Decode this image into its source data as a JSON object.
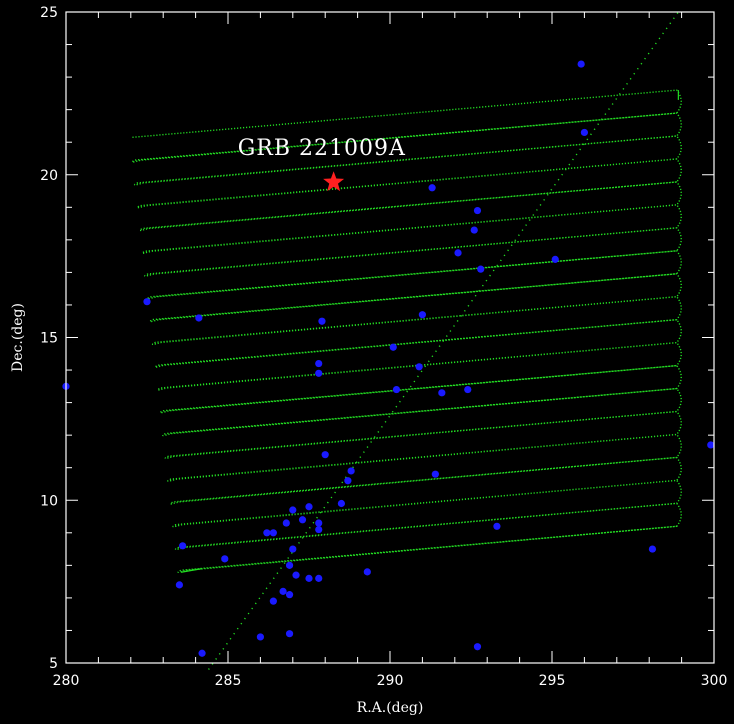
{
  "chart_data": {
    "type": "scatter",
    "xlabel": "R.A.(deg)",
    "ylabel": "Dec.(deg)",
    "xlim": [
      280,
      300
    ],
    "ylim": [
      5,
      25
    ],
    "x_ticks": [
      280,
      285,
      290,
      295,
      300
    ],
    "y_ticks": [
      5,
      10,
      15,
      20,
      25
    ],
    "annotation": "GRB 221009A",
    "colors": {
      "background": "#000000",
      "axes": "#ffffff",
      "scan": "#22dd22",
      "sources": "#1a1aff",
      "grb": "#ff2020"
    },
    "grb": {
      "ra": 288.26,
      "dec": 19.77
    },
    "scan_pattern": {
      "rows": 20,
      "left_start": [
        282.05,
        21.15
      ],
      "left_end": [
        283.55,
        7.85
      ],
      "right_start": [
        298.85,
        22.6
      ],
      "right_end": [
        298.85,
        9.2
      ]
    },
    "diagonal_line": {
      "x": [
        284.4,
        298.9
      ],
      "y": [
        4.8,
        25.0
      ]
    },
    "points": [
      {
        "x": 295.9,
        "y": 23.4
      },
      {
        "x": 296.0,
        "y": 21.3
      },
      {
        "x": 291.3,
        "y": 19.6
      },
      {
        "x": 292.7,
        "y": 18.9
      },
      {
        "x": 292.6,
        "y": 18.3
      },
      {
        "x": 292.1,
        "y": 17.6
      },
      {
        "x": 295.1,
        "y": 17.4
      },
      {
        "x": 292.8,
        "y": 17.1
      },
      {
        "x": 282.5,
        "y": 16.1
      },
      {
        "x": 284.1,
        "y": 15.6
      },
      {
        "x": 287.9,
        "y": 15.5
      },
      {
        "x": 291.0,
        "y": 15.7
      },
      {
        "x": 290.1,
        "y": 14.7
      },
      {
        "x": 287.8,
        "y": 14.2
      },
      {
        "x": 287.8,
        "y": 13.9
      },
      {
        "x": 290.9,
        "y": 14.1
      },
      {
        "x": 280.0,
        "y": 13.5
      },
      {
        "x": 290.2,
        "y": 13.4
      },
      {
        "x": 291.6,
        "y": 13.3
      },
      {
        "x": 292.4,
        "y": 13.4
      },
      {
        "x": 288.0,
        "y": 11.4
      },
      {
        "x": 299.9,
        "y": 11.7
      },
      {
        "x": 288.8,
        "y": 10.9
      },
      {
        "x": 291.4,
        "y": 10.8
      },
      {
        "x": 288.7,
        "y": 10.6
      },
      {
        "x": 288.5,
        "y": 9.9
      },
      {
        "x": 287.5,
        "y": 9.8
      },
      {
        "x": 287.0,
        "y": 9.7
      },
      {
        "x": 286.8,
        "y": 9.3
      },
      {
        "x": 287.3,
        "y": 9.4
      },
      {
        "x": 287.8,
        "y": 9.3
      },
      {
        "x": 287.8,
        "y": 9.1
      },
      {
        "x": 286.4,
        "y": 9.0
      },
      {
        "x": 286.2,
        "y": 9.0
      },
      {
        "x": 293.3,
        "y": 9.2
      },
      {
        "x": 283.6,
        "y": 8.6
      },
      {
        "x": 287.0,
        "y": 8.5
      },
      {
        "x": 284.9,
        "y": 8.2
      },
      {
        "x": 298.1,
        "y": 8.5
      },
      {
        "x": 286.9,
        "y": 8.0
      },
      {
        "x": 287.1,
        "y": 7.7
      },
      {
        "x": 289.3,
        "y": 7.8
      },
      {
        "x": 287.5,
        "y": 7.6
      },
      {
        "x": 287.8,
        "y": 7.6
      },
      {
        "x": 283.5,
        "y": 7.4
      },
      {
        "x": 286.7,
        "y": 7.2
      },
      {
        "x": 286.9,
        "y": 7.1
      },
      {
        "x": 286.4,
        "y": 6.9
      },
      {
        "x": 286.9,
        "y": 5.9
      },
      {
        "x": 286.0,
        "y": 5.8
      },
      {
        "x": 292.7,
        "y": 5.5
      },
      {
        "x": 284.2,
        "y": 5.3
      }
    ]
  }
}
